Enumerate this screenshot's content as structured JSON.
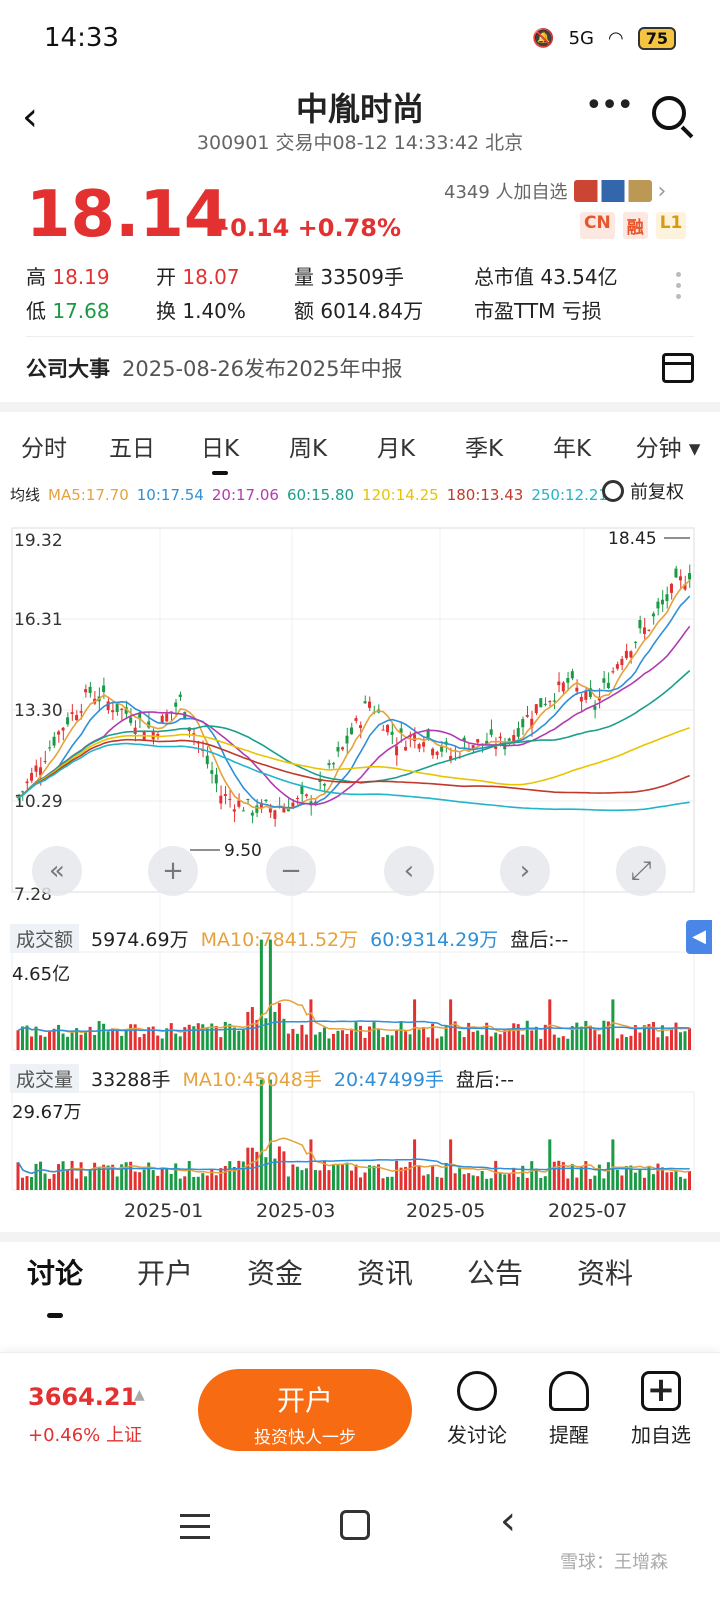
{
  "status": {
    "time": "14:33",
    "signal": "5G",
    "battery": "75"
  },
  "header": {
    "title": "中胤时尚",
    "subtitle": "300901 交易中08-12 14:33:42 北京"
  },
  "quote": {
    "price": "18.14",
    "change": "+0.14 +0.78%",
    "followers": "4349 人加自选",
    "tags": [
      {
        "text": "CN",
        "color": "#e8542b",
        "bg": "#fde8e1"
      },
      {
        "text": "融",
        "color": "#e8542b",
        "bg": "#fde8e1"
      },
      {
        "text": "L1",
        "color": "#d89a10",
        "bg": "#fdf3dc"
      }
    ],
    "high_label": "高",
    "high": "18.19",
    "open_label": "开",
    "open": "18.07",
    "vol_label": "量",
    "vol": "33509手",
    "mcap_label": "总市值",
    "mcap": "43.54亿",
    "low_label": "低",
    "low": "17.68",
    "turn_label": "换",
    "turn": "1.40%",
    "amt_label": "额",
    "amt": "6014.84万",
    "pe_label": "市盈TTM",
    "pe": "亏损"
  },
  "event": {
    "label": "公司大事",
    "text": "2025-08-26发布2025年中报"
  },
  "ktabs": [
    "分时",
    "五日",
    "日K",
    "周K",
    "月K",
    "季K",
    "年K",
    "分钟 ▾"
  ],
  "ma": {
    "label": "均线",
    "items": [
      {
        "text": "MA5:17.70",
        "color": "#e6a23c"
      },
      {
        "text": "10:17.54",
        "color": "#2f8fd8"
      },
      {
        "text": "20:17.06",
        "color": "#b03cb0"
      },
      {
        "text": "60:15.80",
        "color": "#1aa08a"
      },
      {
        "text": "120:14.25",
        "color": "#e8c400"
      },
      {
        "text": "180:13.43",
        "color": "#c0392b"
      },
      {
        "text": "250:12.21",
        "color": "#22b5c8"
      }
    ],
    "adj": "前复权"
  },
  "chart_data": {
    "type": "candlestick",
    "y_ticks": [
      "19.32",
      "16.31",
      "13.30",
      "10.29",
      "7.28"
    ],
    "ylim": [
      7.28,
      19.32
    ],
    "max_label": "18.45",
    "min_label": "9.50",
    "x_labels": [
      "2025-01",
      "2025-03",
      "2025-05",
      "2025-07"
    ],
    "ma_lines": [
      {
        "name": "MA5",
        "color": "#e6a23c"
      },
      {
        "name": "MA10",
        "color": "#2f8fd8"
      },
      {
        "name": "MA20",
        "color": "#b03cb0"
      },
      {
        "name": "MA60",
        "color": "#1aa08a"
      },
      {
        "name": "MA120",
        "color": "#e8c400"
      },
      {
        "name": "MA180",
        "color": "#c0392b"
      },
      {
        "name": "MA250",
        "color": "#22b5c8"
      }
    ]
  },
  "amount": {
    "label": "成交额",
    "value": "5974.69万",
    "ma10": "MA10:7841.52万",
    "ma60": "60:9314.29万",
    "after": "盘后:--",
    "max": "4.65亿"
  },
  "volume": {
    "label": "成交量",
    "value": "33288手",
    "ma10": "MA10:45048手",
    "ma20": "20:47499手",
    "after": "盘后:--",
    "max": "29.67万"
  },
  "bottom_tabs": [
    "讨论",
    "开户",
    "资金",
    "资讯",
    "公告",
    "资料"
  ],
  "bottom_bar": {
    "index_value": "3664.21",
    "index_change": "+0.46% 上证",
    "open_title": "开户",
    "open_sub": "投资快人一步",
    "actions": [
      "发讨论",
      "提醒",
      "加自选"
    ]
  },
  "watermark": "雪球：王增森"
}
